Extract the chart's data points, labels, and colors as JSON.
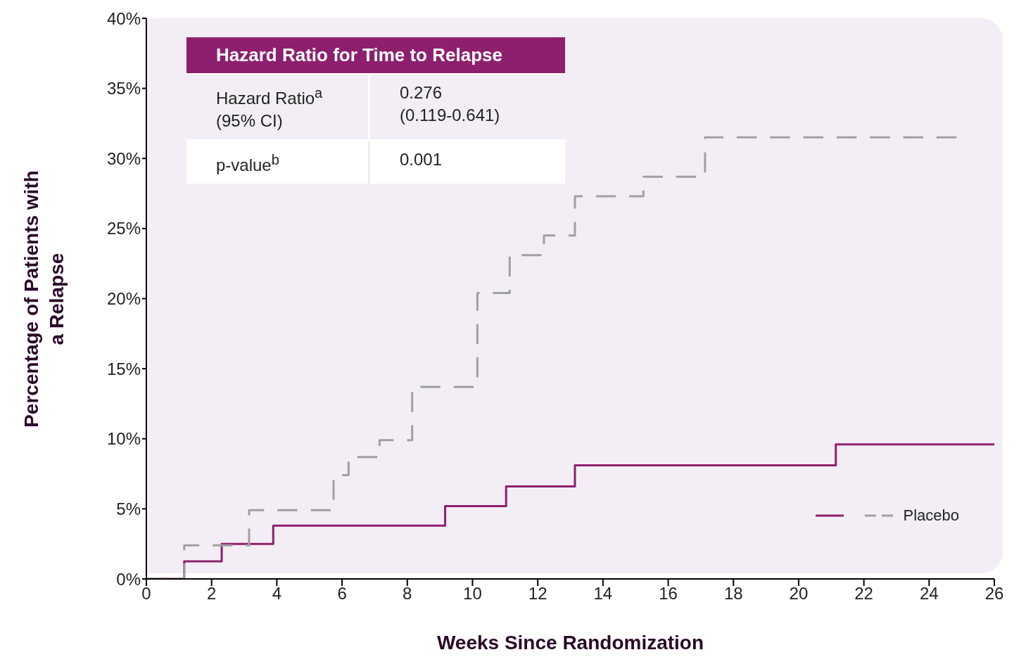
{
  "chart_data": {
    "type": "step",
    "xlabel": "Weeks Since Randomization",
    "ylabel": "Percentage of Patients with a Relapse",
    "xlim": [
      0,
      26
    ],
    "xticks": [
      0,
      2,
      4,
      6,
      8,
      10,
      12,
      14,
      16,
      18,
      20,
      22,
      24,
      26
    ],
    "ylim": [
      0,
      40
    ],
    "yticks": [
      {
        "value": 0,
        "label": "0%"
      },
      {
        "value": 5,
        "label": "5%"
      },
      {
        "value": 10,
        "label": "10%"
      },
      {
        "value": 15,
        "label": "15%"
      },
      {
        "value": 20,
        "label": "20%"
      },
      {
        "value": 25,
        "label": "25%"
      },
      {
        "value": 30,
        "label": "30%"
      },
      {
        "value": 35,
        "label": "35%"
      },
      {
        "value": 40,
        "label": "40%"
      }
    ],
    "legend": "bottom right",
    "series": [
      {
        "color": "#8e1f6e",
        "line_style": "solid",
        "x": [
          0,
          1.16,
          2.31,
          3.89,
          9.16,
          11.03,
          13.14,
          21.14,
          26
        ],
        "values": [
          0,
          1.25,
          2.5,
          3.8,
          5.2,
          6.6,
          8.1,
          9.6,
          9.6
        ]
      },
      {
        "name": "Placebo",
        "color": "#a0a0a0",
        "line_style": "dashed",
        "x": [
          0,
          1.16,
          3.15,
          5.74,
          6.2,
          7.15,
          8.15,
          10.15,
          11.14,
          12.19,
          13.14,
          15.24,
          17.13,
          24.84
        ],
        "values": [
          0,
          2.4,
          4.9,
          7.4,
          8.7,
          9.9,
          13.7,
          20.4,
          23.1,
          24.5,
          27.3,
          28.7,
          31.5,
          31.5
        ]
      }
    ],
    "annotations": [
      "Hazard Ratio for Time to Relapse",
      "Hazard Ratio$^{a}$",
      "(95% CI)",
      "0.276",
      "(0.119-0.641)",
      "p-value$^{b}$",
      "0.001"
    ]
  }
}
